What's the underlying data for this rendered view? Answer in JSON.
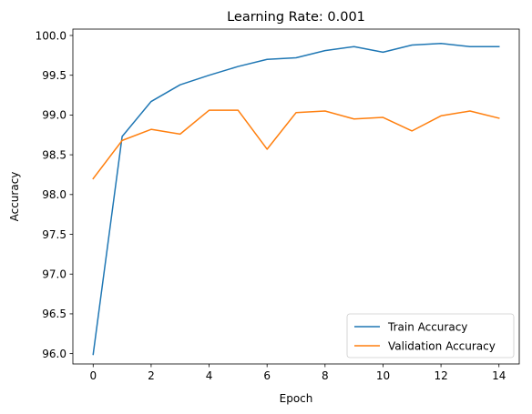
{
  "chart_data": {
    "type": "line",
    "title": "Learning Rate: 0.001",
    "xlabel": "Epoch",
    "ylabel": "Accuracy",
    "x": [
      0,
      1,
      2,
      3,
      4,
      5,
      6,
      7,
      8,
      9,
      10,
      11,
      12,
      13,
      14
    ],
    "xlim": [
      -0.7,
      14.7
    ],
    "ylim": [
      95.87,
      100.08
    ],
    "xticks": [
      0,
      2,
      4,
      6,
      8,
      10,
      12,
      14
    ],
    "yticks": [
      96.0,
      96.5,
      97.0,
      97.5,
      98.0,
      98.5,
      99.0,
      99.5,
      100.0
    ],
    "xtick_labels": [
      "0",
      "2",
      "4",
      "6",
      "8",
      "10",
      "12",
      "14"
    ],
    "ytick_labels": [
      "96.0",
      "96.5",
      "97.0",
      "97.5",
      "98.0",
      "98.5",
      "99.0",
      "99.5",
      "100.0"
    ],
    "grid": false,
    "legend_position": "bottom-right",
    "series": [
      {
        "name": "Train Accuracy",
        "color": "#1f77b4",
        "values": [
          95.99,
          98.73,
          99.17,
          99.38,
          99.5,
          99.61,
          99.7,
          99.72,
          99.81,
          99.86,
          99.79,
          99.88,
          99.9,
          99.86,
          99.86
        ]
      },
      {
        "name": "Validation Accuracy",
        "color": "#ff7f0e",
        "values": [
          98.2,
          98.68,
          98.82,
          98.76,
          99.06,
          99.06,
          98.57,
          99.03,
          99.05,
          98.95,
          98.97,
          98.8,
          98.99,
          99.05,
          98.96
        ]
      }
    ]
  }
}
